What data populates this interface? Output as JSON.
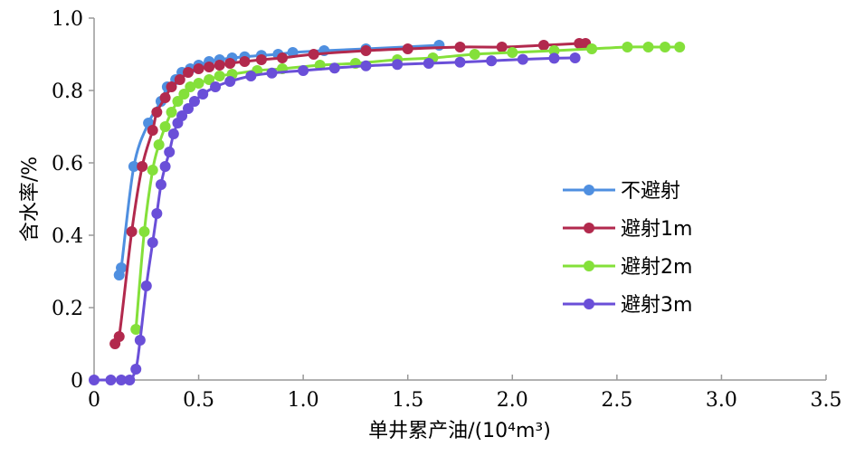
{
  "chart_data": {
    "type": "line",
    "title": "",
    "xlabel": "单井累产油/(10⁴m³)",
    "ylabel": "含水率/%",
    "xlim": [
      0,
      3.5
    ],
    "ylim": [
      0,
      1.0
    ],
    "xticks": [
      "0",
      "0.5",
      "1.0",
      "1.5",
      "2.0",
      "2.5",
      "3.0",
      "3.5"
    ],
    "yticks": [
      "0",
      "0.2",
      "0.4",
      "0.6",
      "0.8",
      "1.0"
    ],
    "grid": false,
    "legend_position": "right",
    "series": [
      {
        "name": "不避射",
        "color": "#4f8fe0",
        "points": [
          [
            0.12,
            0.29
          ],
          [
            0.13,
            0.31
          ],
          [
            0.19,
            0.59
          ],
          [
            0.26,
            0.71
          ],
          [
            0.32,
            0.77
          ],
          [
            0.35,
            0.81
          ],
          [
            0.39,
            0.83
          ],
          [
            0.42,
            0.85
          ],
          [
            0.46,
            0.86
          ],
          [
            0.5,
            0.87
          ],
          [
            0.55,
            0.88
          ],
          [
            0.6,
            0.885
          ],
          [
            0.66,
            0.89
          ],
          [
            0.72,
            0.893
          ],
          [
            0.8,
            0.897
          ],
          [
            0.88,
            0.9
          ],
          [
            0.95,
            0.905
          ],
          [
            1.1,
            0.91
          ],
          [
            1.3,
            0.915
          ],
          [
            1.65,
            0.925
          ]
        ]
      },
      {
        "name": "避射1m",
        "color": "#b2294d",
        "points": [
          [
            0.1,
            0.1
          ],
          [
            0.12,
            0.12
          ],
          [
            0.18,
            0.41
          ],
          [
            0.23,
            0.59
          ],
          [
            0.28,
            0.69
          ],
          [
            0.3,
            0.74
          ],
          [
            0.34,
            0.78
          ],
          [
            0.37,
            0.81
          ],
          [
            0.41,
            0.83
          ],
          [
            0.45,
            0.85
          ],
          [
            0.5,
            0.86
          ],
          [
            0.55,
            0.865
          ],
          [
            0.6,
            0.87
          ],
          [
            0.65,
            0.875
          ],
          [
            0.72,
            0.88
          ],
          [
            0.8,
            0.885
          ],
          [
            0.9,
            0.89
          ],
          [
            1.05,
            0.9
          ],
          [
            1.3,
            0.91
          ],
          [
            1.5,
            0.915
          ],
          [
            1.75,
            0.92
          ],
          [
            1.95,
            0.92
          ],
          [
            2.15,
            0.925
          ],
          [
            2.32,
            0.93
          ],
          [
            2.35,
            0.93
          ]
        ]
      },
      {
        "name": "避射2m",
        "color": "#84e03a",
        "points": [
          [
            0.2,
            0.14
          ],
          [
            0.24,
            0.41
          ],
          [
            0.28,
            0.58
          ],
          [
            0.31,
            0.65
          ],
          [
            0.34,
            0.7
          ],
          [
            0.37,
            0.74
          ],
          [
            0.4,
            0.77
          ],
          [
            0.43,
            0.79
          ],
          [
            0.46,
            0.81
          ],
          [
            0.5,
            0.82
          ],
          [
            0.55,
            0.83
          ],
          [
            0.6,
            0.84
          ],
          [
            0.66,
            0.845
          ],
          [
            0.78,
            0.855
          ],
          [
            0.9,
            0.86
          ],
          [
            1.08,
            0.87
          ],
          [
            1.25,
            0.875
          ],
          [
            1.45,
            0.885
          ],
          [
            1.62,
            0.89
          ],
          [
            1.82,
            0.9
          ],
          [
            2.0,
            0.905
          ],
          [
            2.2,
            0.91
          ],
          [
            2.38,
            0.915
          ],
          [
            2.55,
            0.92
          ],
          [
            2.65,
            0.92
          ],
          [
            2.73,
            0.92
          ],
          [
            2.8,
            0.92
          ]
        ]
      },
      {
        "name": "避射3m",
        "color": "#6a4fd8",
        "points": [
          [
            0.0,
            0.0
          ],
          [
            0.08,
            0.0
          ],
          [
            0.13,
            0.0
          ],
          [
            0.17,
            0.0
          ],
          [
            0.2,
            0.03
          ],
          [
            0.22,
            0.11
          ],
          [
            0.25,
            0.26
          ],
          [
            0.28,
            0.38
          ],
          [
            0.3,
            0.46
          ],
          [
            0.32,
            0.54
          ],
          [
            0.34,
            0.59
          ],
          [
            0.36,
            0.63
          ],
          [
            0.38,
            0.68
          ],
          [
            0.4,
            0.71
          ],
          [
            0.42,
            0.73
          ],
          [
            0.45,
            0.75
          ],
          [
            0.48,
            0.77
          ],
          [
            0.52,
            0.79
          ],
          [
            0.58,
            0.81
          ],
          [
            0.65,
            0.825
          ],
          [
            0.75,
            0.84
          ],
          [
            0.85,
            0.848
          ],
          [
            1.0,
            0.855
          ],
          [
            1.15,
            0.862
          ],
          [
            1.3,
            0.868
          ],
          [
            1.45,
            0.872
          ],
          [
            1.6,
            0.875
          ],
          [
            1.75,
            0.878
          ],
          [
            1.9,
            0.882
          ],
          [
            2.05,
            0.886
          ],
          [
            2.2,
            0.889
          ],
          [
            2.3,
            0.89
          ]
        ]
      }
    ]
  }
}
